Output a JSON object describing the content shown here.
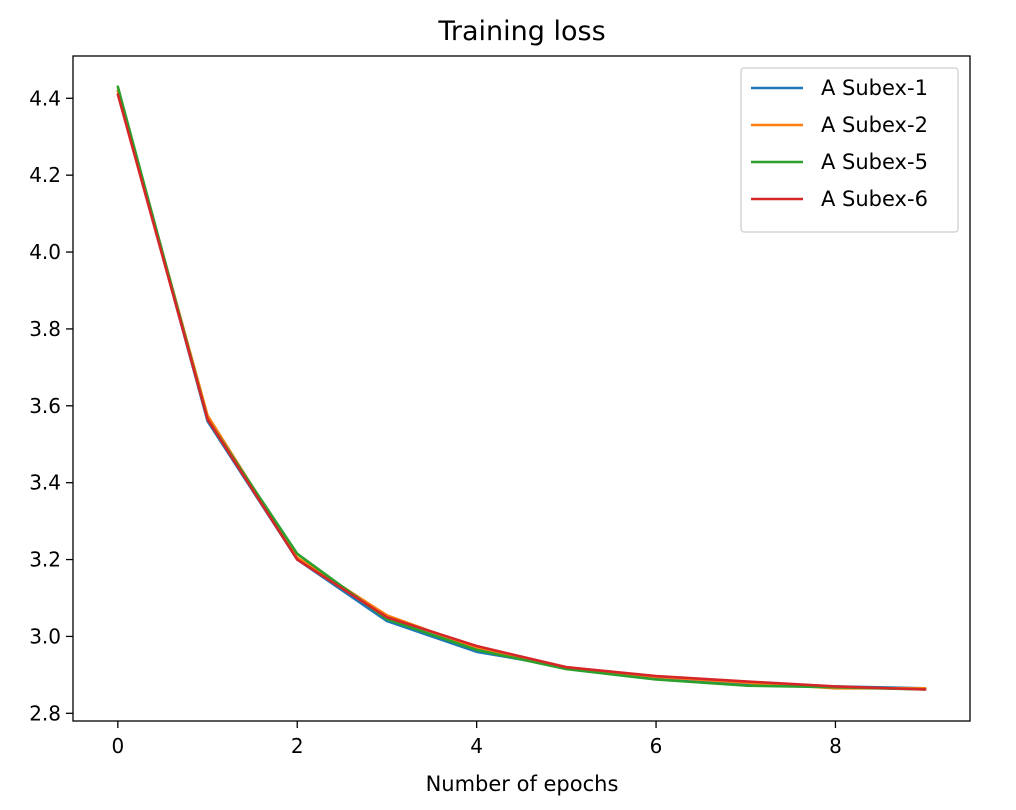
{
  "chart_data": {
    "type": "line",
    "title": "Training loss",
    "xlabel": "Number of epochs",
    "ylabel": "",
    "xlim": [
      -0.5,
      9.5
    ],
    "ylim": [
      2.78,
      4.51
    ],
    "xticks": [
      0,
      2,
      4,
      6,
      8
    ],
    "yticks": [
      2.8,
      3.0,
      3.2,
      3.4,
      3.6,
      3.8,
      4.0,
      4.2,
      4.4
    ],
    "grid": false,
    "legend_position": "top-right",
    "x": [
      0,
      1,
      2,
      3,
      4,
      5,
      6,
      7,
      8,
      9
    ],
    "series": [
      {
        "name": "A Subex-1",
        "color": "#1f77b4",
        "values": [
          4.42,
          3.56,
          3.2,
          3.04,
          2.96,
          2.92,
          2.89,
          2.875,
          2.87,
          2.865
        ]
      },
      {
        "name": "A Subex-2",
        "color": "#ff7f0e",
        "values": [
          4.42,
          3.575,
          3.205,
          3.055,
          2.97,
          2.92,
          2.895,
          2.88,
          2.865,
          2.865
        ]
      },
      {
        "name": "A Subex-5",
        "color": "#2ca02c",
        "values": [
          4.43,
          3.565,
          3.215,
          3.045,
          2.965,
          2.915,
          2.888,
          2.872,
          2.868,
          2.862
        ]
      },
      {
        "name": "A Subex-6",
        "color": "#d62728",
        "values": [
          4.41,
          3.565,
          3.2,
          3.05,
          2.975,
          2.92,
          2.897,
          2.883,
          2.87,
          2.862
        ]
      }
    ]
  }
}
